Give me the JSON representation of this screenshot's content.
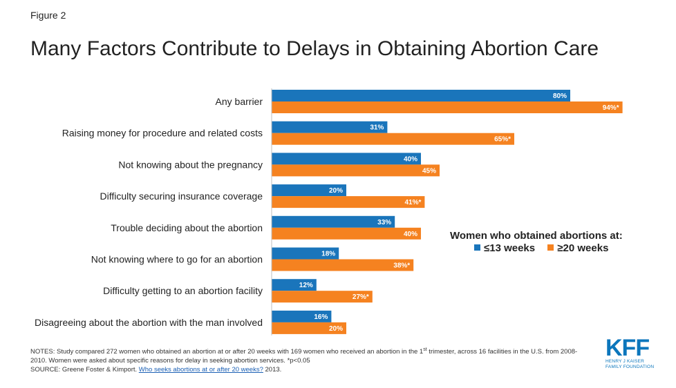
{
  "figure_label": "Figure 2",
  "title": "Many Factors Contribute to Delays in Obtaining Abortion Care",
  "legend": {
    "title": "Women who obtained abortions at:",
    "items": [
      "≤13 weeks",
      "≥20 weeks"
    ]
  },
  "colors": {
    "series1": "#1a75bb",
    "series2": "#f58220"
  },
  "chart_data": {
    "type": "bar",
    "orientation": "horizontal",
    "categories": [
      "Any barrier",
      "Raising money for procedure and related costs",
      "Not knowing about the pregnancy",
      "Difficulty securing insurance coverage",
      "Trouble deciding about the abortion",
      "Not knowing where to go for an abortion",
      "Difficulty getting to an abortion facility",
      "Disagreeing about the abortion with the man involved"
    ],
    "series": [
      {
        "name": "≤13 weeks",
        "values": [
          80,
          31,
          40,
          20,
          33,
          18,
          12,
          16
        ],
        "labels": [
          "80%",
          "31%",
          "40%",
          "20%",
          "33%",
          "18%",
          "12%",
          "16%"
        ]
      },
      {
        "name": "≥20 weeks",
        "values": [
          94,
          65,
          45,
          41,
          40,
          38,
          27,
          20
        ],
        "labels": [
          "94%*",
          "65%*",
          "45%",
          "41%*",
          "40%",
          "38%*",
          "27%*",
          "20%"
        ]
      }
    ],
    "xlim": [
      0,
      100
    ],
    "grid": false,
    "legend_position": "right"
  },
  "notes": {
    "line1_a": "NOTES: Study compared 272 women who obtained an abortion at or after 20 weeks with 169 women who received an abortion in the 1",
    "line1_sup": "st",
    "line1_b": " trimester, across 16 facilities in the U.S. from 2008-2010. Women were asked about specific reasons for delay in seeking abortion services. *p<0.05",
    "source_prefix": "SOURCE: Greene Foster & Kimport. ",
    "source_link": "Who seeks abortions at or after 20 weeks?",
    "source_suffix": " 2013."
  },
  "logo": {
    "mark": "KFF",
    "line1": "HENRY J KAISER",
    "line2": "FAMILY FOUNDATION"
  }
}
